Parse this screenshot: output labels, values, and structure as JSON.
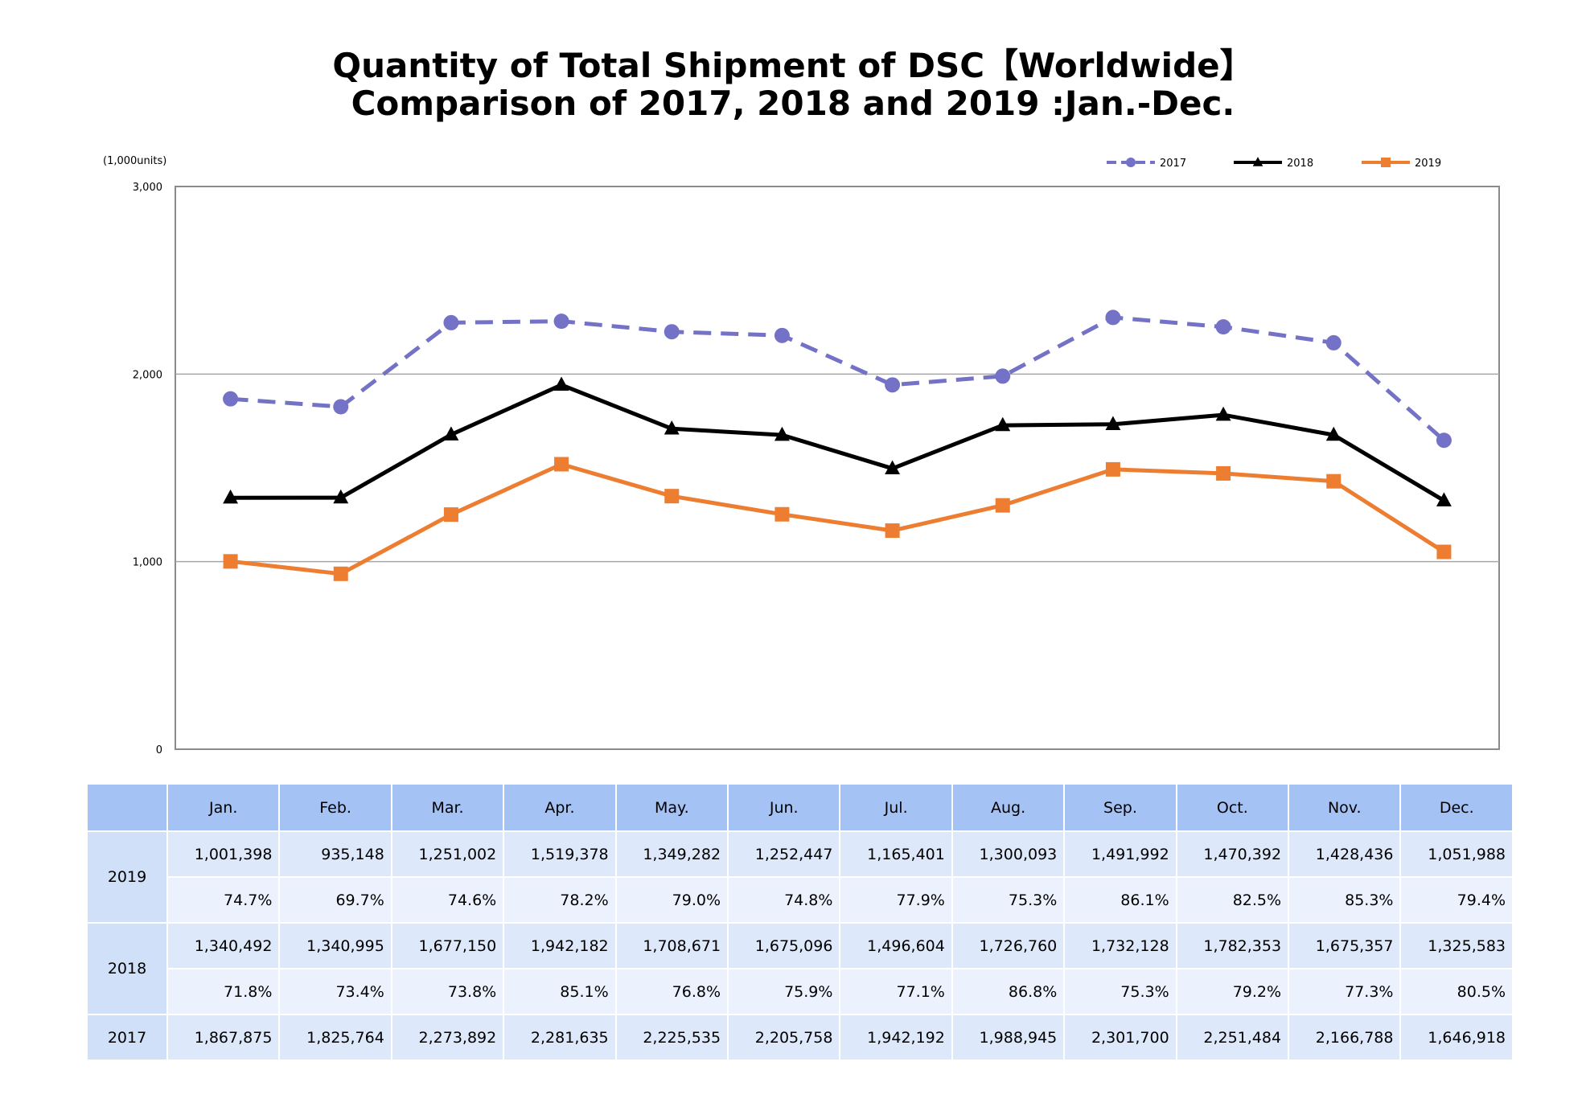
{
  "title_line1": "Quantity of Total Shipment of DSC【Worldwide】",
  "title_line2": "Comparison of 2017, 2018 and 2019 :Jan.-Dec.",
  "chart_data": {
    "type": "line",
    "title": "Quantity of Total Shipment of DSC【Worldwide】 Comparison of 2017, 2018 and 2019 :Jan.-Dec.",
    "unit_label": "(1,000units)",
    "categories": [
      "Jan.",
      "Feb.",
      "Mar.",
      "Apr.",
      "May.",
      "Jun.",
      "Jul.",
      "Aug.",
      "Sep.",
      "Oct.",
      "Nov.",
      "Dec."
    ],
    "ylim": [
      0,
      3000
    ],
    "yticks": [
      0,
      1000,
      2000,
      3000
    ],
    "ytick_labels": [
      "0",
      "1,000",
      "2,000",
      "3,000"
    ],
    "grid": true,
    "legend_position": "top-right",
    "series": [
      {
        "name": "2017",
        "color": "#7472c6",
        "style": "dashed",
        "marker": "circle",
        "values": [
          1867.875,
          1825.764,
          2273.892,
          2281.635,
          2225.535,
          2205.758,
          1942.192,
          1988.945,
          2301.7,
          2251.484,
          2166.788,
          1646.918
        ]
      },
      {
        "name": "2018",
        "color": "#000000",
        "style": "solid",
        "marker": "triangle",
        "values": [
          1340.492,
          1340.995,
          1677.15,
          1942.182,
          1708.671,
          1675.096,
          1496.604,
          1726.76,
          1732.128,
          1782.353,
          1675.357,
          1325.583
        ]
      },
      {
        "name": "2019",
        "color": "#ed7d31",
        "style": "solid",
        "marker": "square",
        "values": [
          1001.398,
          935.148,
          1251.002,
          1519.378,
          1349.282,
          1252.447,
          1165.401,
          1300.093,
          1491.992,
          1470.392,
          1428.436,
          1051.988
        ]
      }
    ]
  },
  "table": {
    "months": [
      "Jan.",
      "Feb.",
      "Mar.",
      "Apr.",
      "May.",
      "Jun.",
      "Jul.",
      "Aug.",
      "Sep.",
      "Oct.",
      "Nov.",
      "Dec."
    ],
    "rows": [
      {
        "year": "2019",
        "values": [
          "1,001,398",
          "935,148",
          "1,251,002",
          "1,519,378",
          "1,349,282",
          "1,252,447",
          "1,165,401",
          "1,300,093",
          "1,491,992",
          "1,470,392",
          "1,428,436",
          "1,051,988"
        ],
        "ratios": [
          "74.7%",
          "69.7%",
          "74.6%",
          "78.2%",
          "79.0%",
          "74.8%",
          "77.9%",
          "75.3%",
          "86.1%",
          "82.5%",
          "85.3%",
          "79.4%"
        ]
      },
      {
        "year": "2018",
        "values": [
          "1,340,492",
          "1,340,995",
          "1,677,150",
          "1,942,182",
          "1,708,671",
          "1,675,096",
          "1,496,604",
          "1,726,760",
          "1,732,128",
          "1,782,353",
          "1,675,357",
          "1,325,583"
        ],
        "ratios": [
          "71.8%",
          "73.4%",
          "73.8%",
          "85.1%",
          "76.8%",
          "75.9%",
          "77.1%",
          "86.8%",
          "75.3%",
          "79.2%",
          "77.3%",
          "80.5%"
        ]
      },
      {
        "year": "2017",
        "values": [
          "1,867,875",
          "1,825,764",
          "2,273,892",
          "2,281,635",
          "2,225,535",
          "2,205,758",
          "1,942,192",
          "1,988,945",
          "2,301,700",
          "2,251,484",
          "2,166,788",
          "1,646,918"
        ]
      }
    ]
  }
}
